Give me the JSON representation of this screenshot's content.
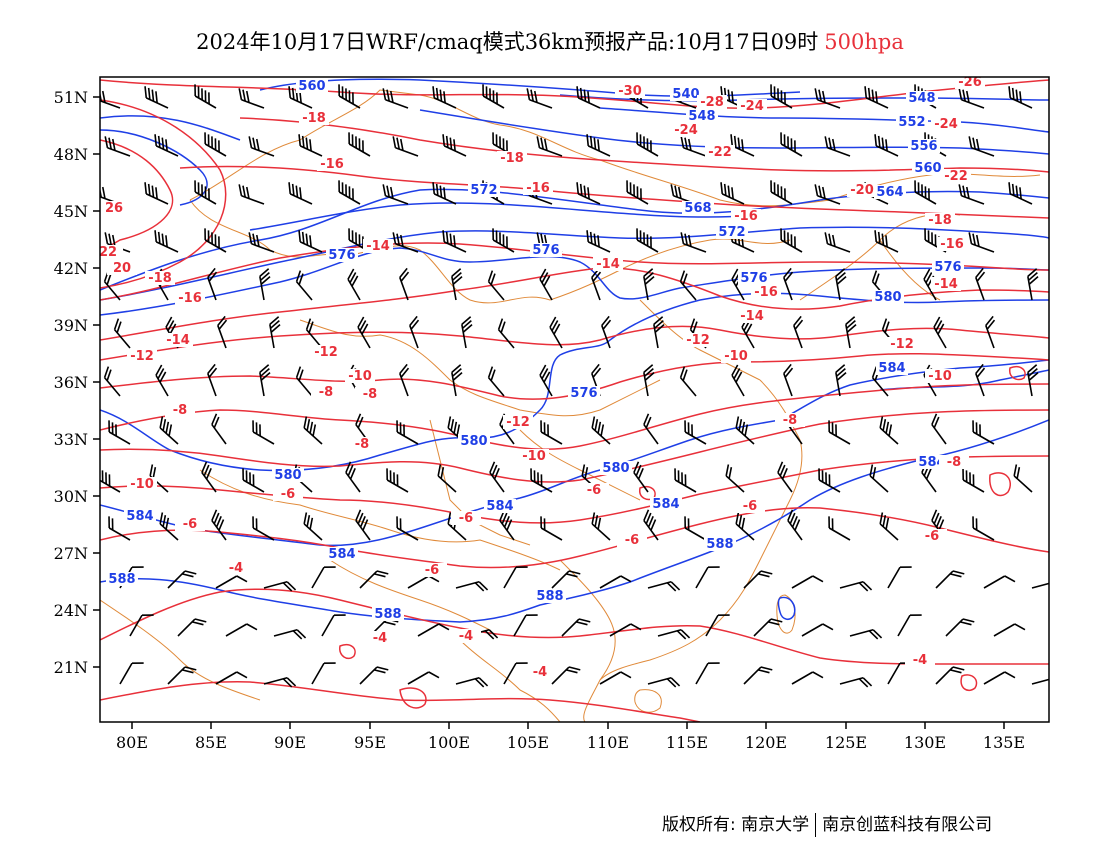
{
  "title": {
    "main": "2024年10月17日WRF/cmaq模式36km预报产品:10月17日09时",
    "level": "500hpa"
  },
  "axes": {
    "x_ticks": [
      "80E",
      "85E",
      "90E",
      "95E",
      "100E",
      "105E",
      "110E",
      "115E",
      "120E",
      "125E",
      "130E",
      "135E"
    ],
    "y_ticks": [
      "51N",
      "48N",
      "45N",
      "42N",
      "39N",
      "36N",
      "33N",
      "30N",
      "27N",
      "24N",
      "21N"
    ]
  },
  "colors": {
    "height": "#1f3fe6",
    "temperature": "#e8303a",
    "border": "#e08a3a",
    "wind": "#000000"
  },
  "height_contours": [
    {
      "label": "540"
    },
    {
      "label": "548"
    },
    {
      "label": "552"
    },
    {
      "label": "556"
    },
    {
      "label": "560"
    },
    {
      "label": "564"
    },
    {
      "label": "568"
    },
    {
      "label": "572"
    },
    {
      "label": "576"
    },
    {
      "label": "580"
    },
    {
      "label": "584"
    },
    {
      "label": "588"
    }
  ],
  "temperature_labels": [
    "-30",
    "-28",
    "-26",
    "-24",
    "-22",
    "-20",
    "-18",
    "-16",
    "-14",
    "-12",
    "-10",
    "-8",
    "-6",
    "-4",
    "20",
    "22",
    "26"
  ],
  "footer": {
    "left": "版权所有: 南京大学",
    "right": "南京创蓝科技有限公司"
  }
}
